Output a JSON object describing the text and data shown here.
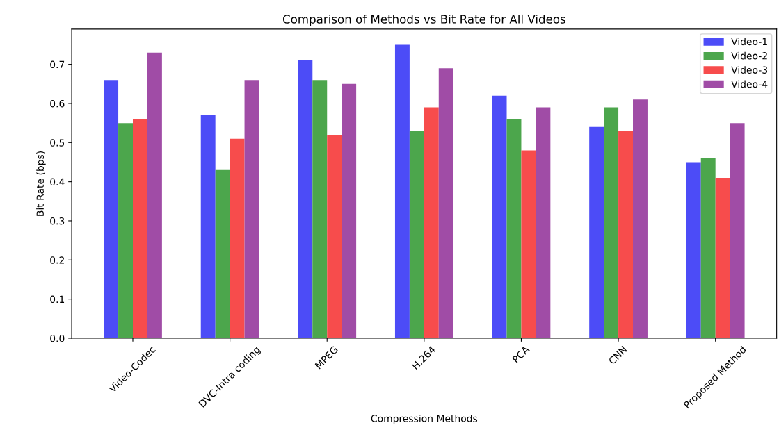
{
  "chart_data": {
    "type": "bar",
    "title": "Comparison of Methods vs Bit Rate for All Videos",
    "xlabel": "Compression Methods",
    "ylabel": "Bit Rate (bps)",
    "categories": [
      "Video-Codec",
      "DVC-Intra coding",
      "MPEG",
      "H.264",
      "PCA",
      "CNN",
      "Proposed Method"
    ],
    "series": [
      {
        "name": "Video-1",
        "color": "#4c4cf7",
        "values": [
          0.66,
          0.57,
          0.71,
          0.75,
          0.62,
          0.54,
          0.45
        ]
      },
      {
        "name": "Video-2",
        "color": "#4ca64c",
        "values": [
          0.55,
          0.43,
          0.66,
          0.53,
          0.56,
          0.59,
          0.46
        ]
      },
      {
        "name": "Video-3",
        "color": "#f74c4c",
        "values": [
          0.56,
          0.51,
          0.52,
          0.59,
          0.48,
          0.53,
          0.41
        ]
      },
      {
        "name": "Video-4",
        "color": "#a04ca6",
        "values": [
          0.73,
          0.66,
          0.65,
          0.69,
          0.59,
          0.61,
          0.55
        ]
      }
    ],
    "ylim": [
      0,
      0.79
    ],
    "yticks": [
      {
        "value": 0,
        "label": "0.0"
      },
      0.1,
      0.2,
      0.3,
      0.4,
      0.5,
      0.6,
      0.7
    ],
    "grid": false,
    "legend": "top right"
  }
}
